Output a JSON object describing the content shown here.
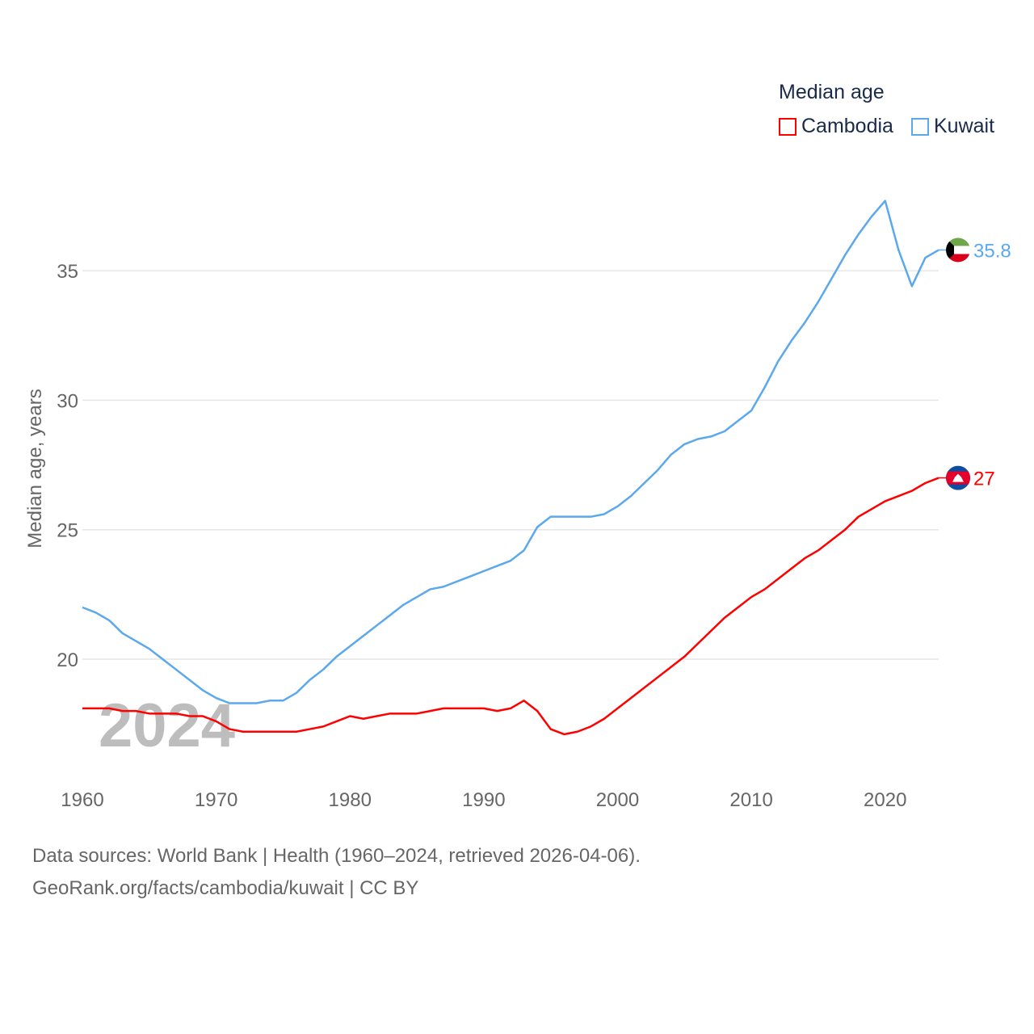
{
  "chart_data": {
    "type": "line",
    "title": "Median age",
    "ylabel": "Median age, years",
    "xlabel": "",
    "xlim": [
      1960,
      2024
    ],
    "ylim": [
      16,
      38
    ],
    "x_ticks": [
      "1960",
      "1970",
      "1980",
      "1990",
      "2000",
      "2010",
      "2020"
    ],
    "y_ticks": [
      "20",
      "25",
      "30",
      "35"
    ],
    "grid": true,
    "legend_placement": "top-right",
    "year_watermark": "2024",
    "x": [
      1960,
      1961,
      1962,
      1963,
      1964,
      1965,
      1966,
      1967,
      1968,
      1969,
      1970,
      1971,
      1972,
      1973,
      1974,
      1975,
      1976,
      1977,
      1978,
      1979,
      1980,
      1981,
      1982,
      1983,
      1984,
      1985,
      1986,
      1987,
      1988,
      1989,
      1990,
      1991,
      1992,
      1993,
      1994,
      1995,
      1996,
      1997,
      1998,
      1999,
      2000,
      2001,
      2002,
      2003,
      2004,
      2005,
      2006,
      2007,
      2008,
      2009,
      2010,
      2011,
      2012,
      2013,
      2014,
      2015,
      2016,
      2017,
      2018,
      2019,
      2020,
      2021,
      2022,
      2023,
      2024
    ],
    "series": [
      {
        "name": "Cambodia",
        "color": "#ff0000",
        "end_label": "27",
        "values": [
          18.1,
          18.1,
          18.1,
          18.0,
          18.0,
          17.9,
          17.9,
          17.9,
          17.8,
          17.8,
          17.6,
          17.3,
          17.2,
          17.2,
          17.2,
          17.2,
          17.2,
          17.3,
          17.4,
          17.6,
          17.8,
          17.7,
          17.8,
          17.9,
          17.9,
          17.9,
          18.0,
          18.1,
          18.1,
          18.1,
          18.1,
          18.0,
          18.1,
          18.4,
          18.0,
          17.3,
          17.1,
          17.2,
          17.4,
          17.7,
          18.1,
          18.5,
          18.9,
          19.3,
          19.7,
          20.1,
          20.6,
          21.1,
          21.6,
          22.0,
          22.4,
          22.7,
          23.1,
          23.5,
          23.9,
          24.2,
          24.6,
          25.0,
          25.5,
          25.8,
          26.1,
          26.3,
          26.5,
          26.8,
          27.0
        ]
      },
      {
        "name": "Kuwait",
        "color": "#5ba8ec",
        "end_label": "35.8",
        "values": [
          22.0,
          21.8,
          21.5,
          21.0,
          20.7,
          20.4,
          20.0,
          19.6,
          19.2,
          18.8,
          18.5,
          18.3,
          18.3,
          18.3,
          18.4,
          18.4,
          18.7,
          19.2,
          19.6,
          20.1,
          20.5,
          20.9,
          21.3,
          21.7,
          22.1,
          22.4,
          22.7,
          22.8,
          23.0,
          23.2,
          23.4,
          23.6,
          23.8,
          24.2,
          25.1,
          25.5,
          25.5,
          25.5,
          25.5,
          25.6,
          25.9,
          26.3,
          26.8,
          27.3,
          27.9,
          28.3,
          28.5,
          28.6,
          28.8,
          29.2,
          29.6,
          30.5,
          31.5,
          32.3,
          33.0,
          33.8,
          34.7,
          35.6,
          36.4,
          37.1,
          37.7,
          35.8,
          34.4,
          35.5,
          35.8
        ]
      }
    ]
  },
  "footer": {
    "line1": "Data sources: World Bank | Health (1960–2024, retrieved 2026-04-06).",
    "line2": "GeoRank.org/facts/cambodia/kuwait | CC BY"
  }
}
